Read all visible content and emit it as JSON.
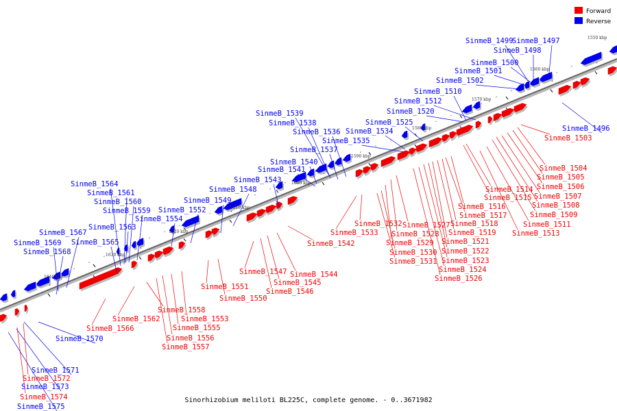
{
  "legend": {
    "forward": {
      "label": "Forward",
      "color": "#ee0000"
    },
    "reverse": {
      "label": "Reverse",
      "color": "#0000ee"
    }
  },
  "caption": "Sinorhizobium meliloti BL225C, complete genome. - 0..3671982",
  "ticks": [
    "1550 kbp",
    "1560 kbp",
    "1570 kbp",
    "1580 kbp",
    "1590 kbp",
    "1600 kbp",
    "1610 kbp",
    "1620 kbp",
    "1630 kbp",
    "1640 kbp"
  ],
  "reverse_labels": [
    "SinmeB_1499",
    "SinmeB_1497",
    "SinmeB_1498",
    "SinmeB_1500",
    "SinmeB_1501",
    "SinmeB_1502",
    "SinmeB_1510",
    "SinmeB_1512",
    "SinmeB_1520",
    "SinmeB_1525",
    "SinmeB_1534",
    "SinmeB_1535",
    "SinmeB_1539",
    "SinmeB_1538",
    "SinmeB_1536",
    "SinmeB_1537",
    "SinmeB_1540",
    "SinmeB_1541",
    "SinmeB_1543",
    "SinmeB_1548",
    "SinmeB_1549",
    "SinmeB_1552",
    "SinmeB_1554",
    "SinmeB_1564",
    "SinmeB_1561",
    "SinmeB_1560",
    "SinmeB_1559",
    "SinmeB_1563",
    "SinmeB_1565",
    "SinmeB_1567",
    "SinmeB_1569",
    "SinmeB_1568",
    "SinmeB_1496",
    "SinmeB_1570",
    "SinmeB_1571",
    "SinmeB_1573",
    "SinmeB_1575"
  ],
  "forward_labels": [
    "SinmeB_1503",
    "SinmeB_1504",
    "SinmeB_1505",
    "SinmeB_1506",
    "SinmeB_1507",
    "SinmeB_1508",
    "SinmeB_1509",
    "SinmeB_1511",
    "SinmeB_1513",
    "SinmeB_1514",
    "SinmeB_1515",
    "SinmeB_1516",
    "SinmeB_1517",
    "SinmeB_1518",
    "SinmeB_1519",
    "SinmeB_1521",
    "SinmeB_1522",
    "SinmeB_1523",
    "SinmeB_1524",
    "SinmeB_1526",
    "SinmeB_1527",
    "SinmeB_1528",
    "SinmeB_1529",
    "SinmeB_1530",
    "SinmeB_1531",
    "SinmeB_1532",
    "SinmeB_1533",
    "SinmeB_1542",
    "SinmeB_1544",
    "SinmeB_1545",
    "SinmeB_1546",
    "SinmeB_1547",
    "SinmeB_1550",
    "SinmeB_1551",
    "SinmeB_1553",
    "SinmeB_1555",
    "SinmeB_1556",
    "SinmeB_1557",
    "SinmeB_1558",
    "SinmeB_1562",
    "SinmeB_1566",
    "SinmeB_1572",
    "SinmeB_1574"
  ]
}
